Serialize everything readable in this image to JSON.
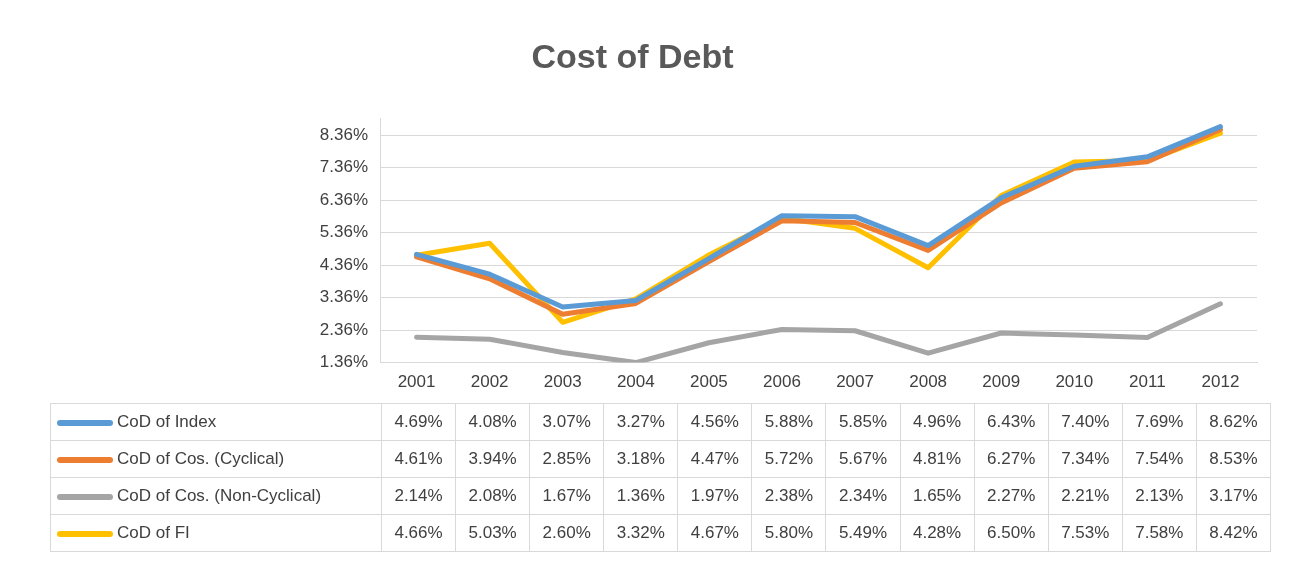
{
  "chart_data": {
    "type": "line",
    "title": "Cost of Debt",
    "categories": [
      "2001",
      "2002",
      "2003",
      "2004",
      "2005",
      "2006",
      "2007",
      "2008",
      "2009",
      "2010",
      "2011",
      "2012"
    ],
    "ylim": [
      1.36,
      8.86
    ],
    "yticks": [
      {
        "value": 1.36,
        "label": "1.36%"
      },
      {
        "value": 2.36,
        "label": "2.36%"
      },
      {
        "value": 3.36,
        "label": "3.36%"
      },
      {
        "value": 4.36,
        "label": "4.36%"
      },
      {
        "value": 5.36,
        "label": "5.36%"
      },
      {
        "value": 6.36,
        "label": "6.36%"
      },
      {
        "value": 7.36,
        "label": "7.36%"
      },
      {
        "value": 8.36,
        "label": "8.36%"
      }
    ],
    "grid": "y",
    "legend": "bottom",
    "marker": "none",
    "line_style": "solid",
    "series": [
      {
        "name": "CoD of Index",
        "color": "#5b9bd5",
        "values": [
          4.69,
          4.08,
          3.07,
          3.27,
          4.56,
          5.88,
          5.85,
          4.96,
          6.43,
          7.4,
          7.69,
          8.62
        ],
        "value_labels": [
          "4.69%",
          "4.08%",
          "3.07%",
          "3.27%",
          "4.56%",
          "5.88%",
          "5.85%",
          "4.96%",
          "6.43%",
          "7.40%",
          "7.69%",
          "8.62%"
        ]
      },
      {
        "name": "CoD of Cos. (Cyclical)",
        "color": "#ed7d31",
        "values": [
          4.61,
          3.94,
          2.85,
          3.18,
          4.47,
          5.72,
          5.67,
          4.81,
          6.27,
          7.34,
          7.54,
          8.53
        ],
        "value_labels": [
          "4.61%",
          "3.94%",
          "2.85%",
          "3.18%",
          "4.47%",
          "5.72%",
          "5.67%",
          "4.81%",
          "6.27%",
          "7.34%",
          "7.54%",
          "8.53%"
        ]
      },
      {
        "name": "CoD of Cos. (Non-Cyclical)",
        "color": "#a5a5a5",
        "values": [
          2.14,
          2.08,
          1.67,
          1.36,
          1.97,
          2.38,
          2.34,
          1.65,
          2.27,
          2.21,
          2.13,
          3.17
        ],
        "value_labels": [
          "2.14%",
          "2.08%",
          "1.67%",
          "1.36%",
          "1.97%",
          "2.38%",
          "2.34%",
          "1.65%",
          "2.27%",
          "2.21%",
          "2.13%",
          "3.17%"
        ]
      },
      {
        "name": "CoD of FI",
        "color": "#ffc000",
        "values": [
          4.66,
          5.03,
          2.6,
          3.32,
          4.67,
          5.8,
          5.49,
          4.28,
          6.5,
          7.53,
          7.58,
          8.42
        ],
        "value_labels": [
          "4.66%",
          "5.03%",
          "2.60%",
          "3.32%",
          "4.67%",
          "5.80%",
          "5.49%",
          "4.28%",
          "6.50%",
          "7.53%",
          "7.58%",
          "8.42%"
        ]
      }
    ]
  }
}
